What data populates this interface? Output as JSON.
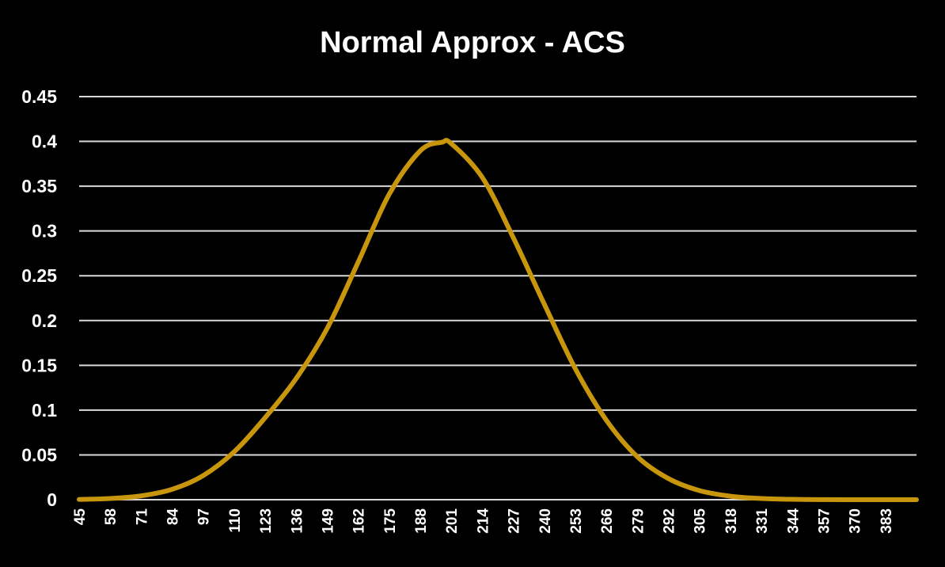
{
  "chart_data": {
    "type": "line",
    "title": "Normal Approx - ACS",
    "xlabel": "",
    "ylabel": "",
    "x_range": [
      45,
      396
    ],
    "ylim": [
      0,
      0.45
    ],
    "yticks": [
      "0",
      "0.05",
      "0.1",
      "0.15",
      "0.2",
      "0.25",
      "0.3",
      "0.35",
      "0.4",
      "0.45"
    ],
    "xticks": [
      "45",
      "58",
      "71",
      "84",
      "97",
      "110",
      "123",
      "136",
      "149",
      "162",
      "175",
      "188",
      "201",
      "214",
      "227",
      "240",
      "253",
      "266",
      "279",
      "292",
      "305",
      "318",
      "331",
      "344",
      "357",
      "370",
      "383"
    ],
    "grid": true,
    "legend": "none",
    "colors": {
      "background": "#000000",
      "line": "#c8960c",
      "grid": "#d9d9d9",
      "text": "#ffffff"
    },
    "series": [
      {
        "x": [
          45,
          58,
          71,
          84,
          97,
          110,
          123,
          136,
          149,
          162,
          175,
          188,
          197,
          201,
          214,
          227,
          240,
          253,
          266,
          279,
          292,
          305,
          318,
          331,
          344,
          357,
          370,
          383,
          396
        ],
        "values": [
          0.0003,
          0.0013,
          0.0043,
          0.0116,
          0.0269,
          0.0535,
          0.0917,
          0.1354,
          0.1914,
          0.2654,
          0.3412,
          0.3895,
          0.399,
          0.3975,
          0.3597,
          0.2925,
          0.2182,
          0.1461,
          0.0887,
          0.0479,
          0.0236,
          0.0102,
          0.0039,
          0.0013,
          0.0004,
          0.0001,
          0.0,
          0.0,
          0.0
        ]
      }
    ]
  }
}
